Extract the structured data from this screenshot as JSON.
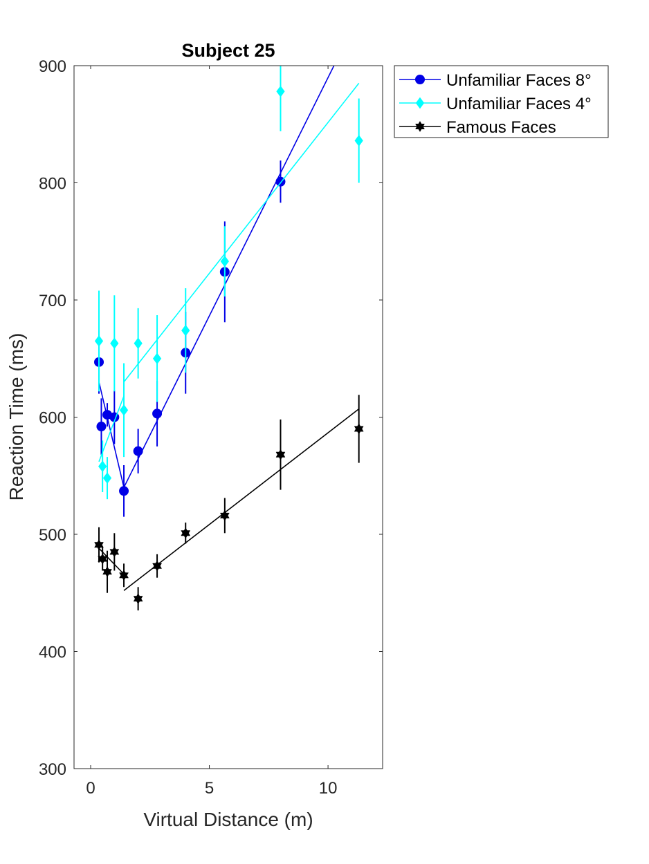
{
  "chart_data": {
    "type": "scatter",
    "title": "Subject 25",
    "xlabel": "Virtual Distance (m)",
    "ylabel": "Reaction Time (ms)",
    "xlim": [
      -0.7,
      12.3
    ],
    "ylim": [
      300,
      900
    ],
    "xticks": [
      0,
      5,
      10
    ],
    "yticks": [
      300,
      400,
      500,
      600,
      700,
      800,
      900
    ],
    "legend_position": "outside-top-right",
    "grid": false,
    "series": [
      {
        "name": "Unfamiliar Faces 8°",
        "color": "#0000e6",
        "marker": "circle",
        "points": [
          {
            "x": 0.35,
            "y": 647,
            "err": 27
          },
          {
            "x": 0.45,
            "y": 592,
            "err": 24
          },
          {
            "x": 0.7,
            "y": 602,
            "err": 10
          },
          {
            "x": 1.0,
            "y": 600,
            "err": 23
          },
          {
            "x": 1.4,
            "y": 537,
            "err": 22
          },
          {
            "x": 2.0,
            "y": 571,
            "err": 19
          },
          {
            "x": 2.8,
            "y": 603,
            "err": 28
          },
          {
            "x": 4.0,
            "y": 655,
            "err": 35
          },
          {
            "x": 5.65,
            "y": 724,
            "err": 43
          },
          {
            "x": 8.0,
            "y": 801,
            "err": 18
          }
        ],
        "fit_segments": [
          [
            [
              0.35,
              630
            ],
            [
              1.4,
              540
            ]
          ],
          [
            [
              1.4,
              540
            ],
            [
              10.3,
              902
            ]
          ]
        ]
      },
      {
        "name": "Unfamiliar Faces 4°",
        "color": "#00ffff",
        "marker": "diamond",
        "points": [
          {
            "x": 0.35,
            "y": 665,
            "err": 43
          },
          {
            "x": 0.5,
            "y": 558,
            "err": 22
          },
          {
            "x": 0.7,
            "y": 548,
            "err": 18
          },
          {
            "x": 1.0,
            "y": 663,
            "err": 41
          },
          {
            "x": 1.4,
            "y": 606,
            "err": 40
          },
          {
            "x": 2.0,
            "y": 663,
            "err": 30
          },
          {
            "x": 2.8,
            "y": 650,
            "err": 37
          },
          {
            "x": 4.0,
            "y": 674,
            "err": 36
          },
          {
            "x": 5.65,
            "y": 733,
            "err": 30
          },
          {
            "x": 8.0,
            "y": 878,
            "err": 34
          },
          {
            "x": 11.3,
            "y": 836,
            "err": 36
          }
        ],
        "fit_segments": [
          [
            [
              0.35,
              562
            ],
            [
              1.4,
              618
            ]
          ],
          [
            [
              1.4,
              630
            ],
            [
              11.3,
              885
            ]
          ]
        ]
      },
      {
        "name": "Famous Faces",
        "color": "#000000",
        "marker": "hexagram",
        "points": [
          {
            "x": 0.35,
            "y": 491,
            "err": 15
          },
          {
            "x": 0.5,
            "y": 479,
            "err": 10
          },
          {
            "x": 0.7,
            "y": 468,
            "err": 18
          },
          {
            "x": 1.0,
            "y": 485,
            "err": 16
          },
          {
            "x": 1.4,
            "y": 465,
            "err": 10
          },
          {
            "x": 2.0,
            "y": 445,
            "err": 10
          },
          {
            "x": 2.8,
            "y": 473,
            "err": 10
          },
          {
            "x": 4.0,
            "y": 501,
            "err": 9
          },
          {
            "x": 5.65,
            "y": 516,
            "err": 15
          },
          {
            "x": 8.0,
            "y": 568,
            "err": 30
          },
          {
            "x": 11.3,
            "y": 590,
            "err": 29
          }
        ],
        "fit_segments": [
          [
            [
              0.35,
              488
            ],
            [
              1.4,
              466
            ]
          ],
          [
            [
              1.4,
              452
            ],
            [
              11.3,
              607
            ]
          ]
        ]
      }
    ]
  }
}
